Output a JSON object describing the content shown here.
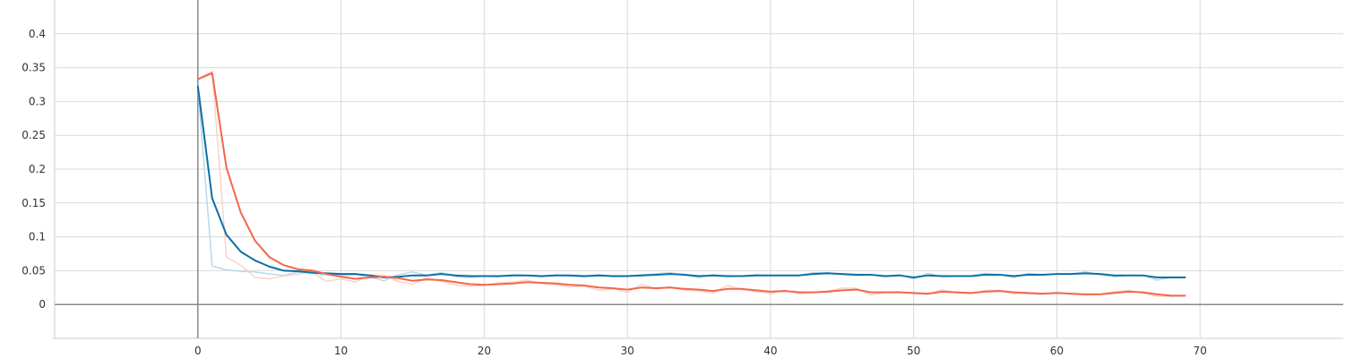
{
  "chart_data": {
    "type": "line",
    "title": "",
    "xlabel": "",
    "ylabel": "",
    "xlim": [
      -10,
      80
    ],
    "ylim": [
      -0.05,
      0.45
    ],
    "x_ticks": [
      0,
      10,
      20,
      30,
      40,
      50,
      60,
      70
    ],
    "x_tick_labels": [
      "0",
      "10",
      "20",
      "30",
      "40",
      "50",
      "60",
      "70"
    ],
    "y_ticks": [
      0,
      0.05,
      0.1,
      0.15,
      0.2,
      0.25,
      0.3,
      0.35,
      0.4
    ],
    "y_tick_labels": [
      "0",
      "0.05",
      "0.1",
      "0.15",
      "0.2",
      "0.25",
      "0.3",
      "0.35",
      "0.4"
    ],
    "grid": true,
    "legend": "none",
    "series": [
      {
        "color": "#0a6fa8",
        "raw_color": "#b9d9ea",
        "x": [
          0,
          1,
          2,
          3,
          4,
          5,
          6,
          7,
          8,
          9,
          10,
          11,
          12,
          13,
          14,
          15,
          16,
          17,
          18,
          19,
          20,
          21,
          22,
          23,
          24,
          25,
          26,
          27,
          28,
          29,
          30,
          31,
          32,
          33,
          34,
          35,
          36,
          37,
          38,
          39,
          40,
          41,
          42,
          43,
          44,
          45,
          46,
          47,
          48,
          49,
          50,
          51,
          52,
          53,
          54,
          55,
          56,
          57,
          58,
          59,
          60,
          61,
          62,
          63,
          64,
          65,
          66,
          67,
          68,
          69
        ],
        "smoothed": [
          0.323,
          0.157,
          0.103,
          0.078,
          0.065,
          0.056,
          0.05,
          0.049,
          0.047,
          0.046,
          0.045,
          0.045,
          0.043,
          0.04,
          0.041,
          0.043,
          0.043,
          0.045,
          0.043,
          0.042,
          0.042,
          0.042,
          0.043,
          0.043,
          0.042,
          0.043,
          0.043,
          0.042,
          0.043,
          0.042,
          0.042,
          0.043,
          0.044,
          0.045,
          0.044,
          0.042,
          0.043,
          0.042,
          0.042,
          0.043,
          0.043,
          0.043,
          0.043,
          0.045,
          0.046,
          0.045,
          0.044,
          0.044,
          0.042,
          0.043,
          0.04,
          0.043,
          0.042,
          0.042,
          0.042,
          0.044,
          0.044,
          0.042,
          0.044,
          0.044,
          0.045,
          0.045,
          0.046,
          0.045,
          0.043,
          0.043,
          0.043,
          0.04,
          0.04,
          0.04
        ],
        "raw": [
          0.322,
          0.057,
          0.051,
          0.049,
          0.048,
          0.045,
          0.043,
          0.048,
          0.046,
          0.044,
          0.043,
          0.044,
          0.041,
          0.035,
          0.044,
          0.048,
          0.043,
          0.047,
          0.041,
          0.04,
          0.042,
          0.041,
          0.044,
          0.043,
          0.041,
          0.044,
          0.042,
          0.041,
          0.044,
          0.041,
          0.042,
          0.044,
          0.045,
          0.047,
          0.043,
          0.04,
          0.044,
          0.041,
          0.042,
          0.044,
          0.043,
          0.043,
          0.043,
          0.047,
          0.047,
          0.044,
          0.043,
          0.044,
          0.041,
          0.044,
          0.038,
          0.046,
          0.041,
          0.042,
          0.042,
          0.046,
          0.044,
          0.04,
          0.046,
          0.044,
          0.045,
          0.045,
          0.048,
          0.044,
          0.041,
          0.043,
          0.043,
          0.036,
          0.04,
          0.041
        ]
      },
      {
        "color": "#f2674a",
        "raw_color": "#fbd2c8",
        "x": [
          0,
          1,
          2,
          3,
          4,
          5,
          6,
          7,
          8,
          9,
          10,
          11,
          12,
          13,
          14,
          15,
          16,
          17,
          18,
          19,
          20,
          21,
          22,
          23,
          24,
          25,
          26,
          27,
          28,
          29,
          30,
          31,
          32,
          33,
          34,
          35,
          36,
          37,
          38,
          39,
          40,
          41,
          42,
          43,
          44,
          45,
          46,
          47,
          48,
          49,
          50,
          51,
          52,
          53,
          54,
          55,
          56,
          57,
          58,
          59,
          60,
          61,
          62,
          63,
          64,
          65,
          66,
          67,
          68,
          69
        ],
        "smoothed": [
          0.333,
          0.342,
          0.202,
          0.136,
          0.094,
          0.07,
          0.058,
          0.052,
          0.05,
          0.045,
          0.041,
          0.038,
          0.04,
          0.041,
          0.039,
          0.035,
          0.037,
          0.036,
          0.033,
          0.03,
          0.029,
          0.03,
          0.031,
          0.033,
          0.032,
          0.031,
          0.029,
          0.028,
          0.025,
          0.024,
          0.022,
          0.025,
          0.024,
          0.025,
          0.023,
          0.022,
          0.02,
          0.023,
          0.023,
          0.021,
          0.019,
          0.02,
          0.018,
          0.018,
          0.019,
          0.021,
          0.022,
          0.018,
          0.018,
          0.018,
          0.017,
          0.016,
          0.019,
          0.018,
          0.017,
          0.019,
          0.02,
          0.018,
          0.017,
          0.016,
          0.017,
          0.016,
          0.015,
          0.015,
          0.017,
          0.019,
          0.018,
          0.015,
          0.013,
          0.013
        ],
        "raw": [
          0.333,
          0.345,
          0.07,
          0.058,
          0.04,
          0.038,
          0.042,
          0.045,
          0.047,
          0.034,
          0.038,
          0.033,
          0.044,
          0.043,
          0.034,
          0.03,
          0.04,
          0.034,
          0.029,
          0.027,
          0.028,
          0.032,
          0.033,
          0.036,
          0.031,
          0.029,
          0.026,
          0.027,
          0.021,
          0.023,
          0.018,
          0.03,
          0.023,
          0.026,
          0.021,
          0.02,
          0.017,
          0.028,
          0.022,
          0.019,
          0.016,
          0.021,
          0.016,
          0.018,
          0.02,
          0.024,
          0.024,
          0.014,
          0.018,
          0.019,
          0.016,
          0.015,
          0.022,
          0.017,
          0.016,
          0.021,
          0.021,
          0.016,
          0.016,
          0.015,
          0.018,
          0.015,
          0.014,
          0.015,
          0.019,
          0.021,
          0.017,
          0.012,
          0.012,
          0.013
        ]
      }
    ]
  }
}
